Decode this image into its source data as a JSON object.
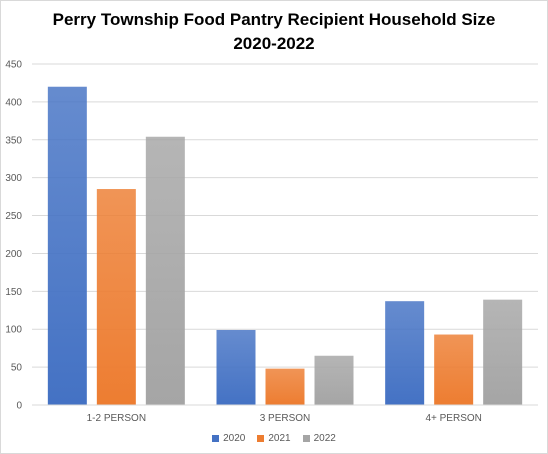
{
  "chart_data": {
    "type": "bar",
    "title": [
      "Perry Township Food Pantry Recipient Household Size",
      "2020-2022"
    ],
    "categories": [
      "1-2 PERSON",
      "3 PERSON",
      "4+ PERSON"
    ],
    "series": [
      {
        "name": "2020",
        "values": [
          420,
          99,
          137
        ],
        "color": "#4472C4"
      },
      {
        "name": "2021",
        "values": [
          285,
          48,
          93
        ],
        "color": "#ED7D31"
      },
      {
        "name": "2022",
        "values": [
          354,
          65,
          139
        ],
        "color": "#A5A5A5"
      }
    ],
    "ylim": [
      0,
      450
    ],
    "yticks": [
      "0",
      "50",
      "100",
      "150",
      "200",
      "250",
      "300",
      "350",
      "400",
      "450"
    ],
    "grid": true,
    "legend": "bottom"
  }
}
